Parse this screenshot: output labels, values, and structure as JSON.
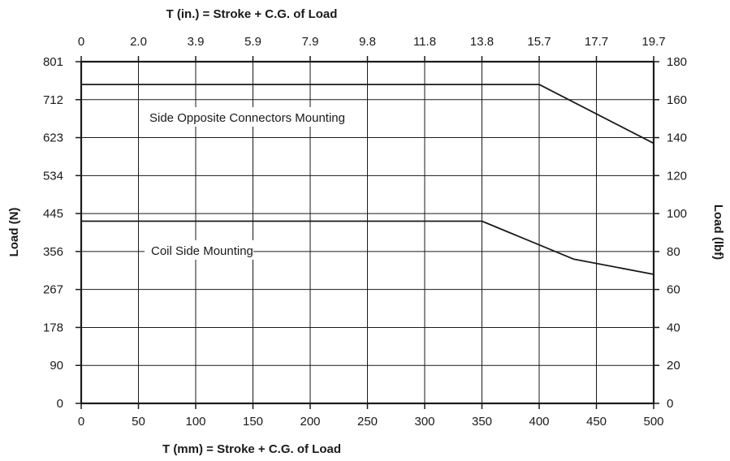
{
  "chart_data": {
    "type": "line",
    "x_bottom": {
      "label": "T (mm) = Stroke + C.G. of Load",
      "ticks": [
        0,
        50,
        100,
        150,
        200,
        250,
        300,
        350,
        400,
        450,
        500
      ],
      "range": [
        0,
        500
      ]
    },
    "x_top": {
      "label": "T (in.) = Stroke + C.G. of Load",
      "ticks": [
        "0",
        "2.0",
        "3.9",
        "5.9",
        "7.9",
        "9.8",
        "11.8",
        "13.8",
        "15.7",
        "17.7",
        "19.7"
      ]
    },
    "y_left": {
      "label": "Load (N)",
      "ticks": [
        "0",
        "90",
        "178",
        "267",
        "356",
        "445",
        "534",
        "623",
        "712",
        "801"
      ]
    },
    "y_right": {
      "label": "Load (lbf)",
      "ticks": [
        0,
        20,
        40,
        60,
        80,
        100,
        120,
        140,
        160,
        180
      ],
      "range": [
        0,
        180
      ]
    },
    "grid": true,
    "series": [
      {
        "name": "Side Opposite Connectors Mounting",
        "x": [
          0,
          400,
          500
        ],
        "y": [
          168,
          168,
          137
        ]
      },
      {
        "name": "Coil Side Mounting",
        "x": [
          0,
          350,
          430,
          500
        ],
        "y": [
          96,
          96,
          76,
          68
        ]
      }
    ]
  }
}
